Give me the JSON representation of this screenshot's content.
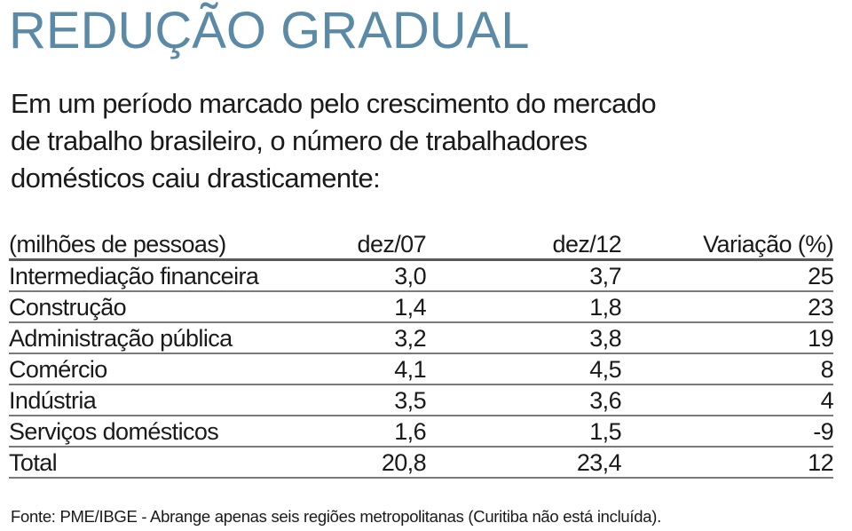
{
  "title": "REDUÇÃO GRADUAL",
  "subtitle": "Em um período marcado pelo crescimento do mercado de trabalho brasileiro, o número de trabalhadores domésticos caiu drasticamente:",
  "source": "Fonte: PME/IBGE - Abrange apenas seis regiões metropolitanas (Curitiba não está incluída).",
  "colors": {
    "title": "#5b8aa7",
    "text": "#1a1a1a",
    "rule": "#7a7a7a"
  },
  "chart_data": {
    "type": "table",
    "columns": [
      "(milhões de pessoas)",
      "dez/07",
      "dez/12",
      "Variação (%)"
    ],
    "rows": [
      [
        "Intermediação financeira",
        "3,0",
        "3,7",
        "25"
      ],
      [
        "Construção",
        "1,4",
        "1,8",
        "23"
      ],
      [
        "Administração pública",
        "3,2",
        "3,8",
        "19"
      ],
      [
        "Comércio",
        "4,1",
        "4,5",
        "8"
      ],
      [
        "Indústria",
        "3,5",
        "3,6",
        "4"
      ],
      [
        "Serviços domésticos",
        "1,6",
        "1,5",
        "-9"
      ],
      [
        "Total",
        "20,8",
        "23,4",
        "12"
      ]
    ]
  }
}
